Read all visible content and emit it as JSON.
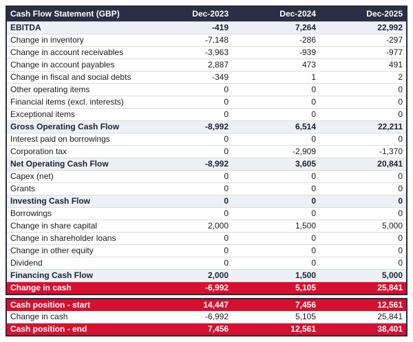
{
  "table": {
    "title": "Cash Flow Statement (GBP)",
    "columns": [
      "Dec-2023",
      "Dec-2024",
      "Dec-2025"
    ],
    "rows": [
      {
        "label": "EBITDA",
        "values": [
          "-419",
          "7,264",
          "22,992"
        ],
        "style": "subtotal"
      },
      {
        "label": "Change in inventory",
        "values": [
          "-7,148",
          "-286",
          "-297"
        ],
        "style": "normal"
      },
      {
        "label": "Change in account receivables",
        "values": [
          "-3,963",
          "-939",
          "-977"
        ],
        "style": "normal"
      },
      {
        "label": "Change in account payables",
        "values": [
          "2,887",
          "473",
          "491"
        ],
        "style": "normal"
      },
      {
        "label": "Change in fiscal and social debts",
        "values": [
          "-349",
          "1",
          "2"
        ],
        "style": "normal"
      },
      {
        "label": "Other operating items",
        "values": [
          "0",
          "0",
          "0"
        ],
        "style": "normal"
      },
      {
        "label": "Financial items (excl. interests)",
        "values": [
          "0",
          "0",
          "0"
        ],
        "style": "normal"
      },
      {
        "label": "Exceptional items",
        "values": [
          "0",
          "0",
          "0"
        ],
        "style": "normal"
      },
      {
        "label": "Gross Operating Cash Flow",
        "values": [
          "-8,992",
          "6,514",
          "22,211"
        ],
        "style": "subtotal"
      },
      {
        "label": "Interest paid on borrowings",
        "values": [
          "0",
          "0",
          "0"
        ],
        "style": "normal"
      },
      {
        "label": "Corporation tax",
        "values": [
          "0",
          "-2,909",
          "-1,370"
        ],
        "style": "normal"
      },
      {
        "label": "Net Operating Cash Flow",
        "values": [
          "-8,992",
          "3,605",
          "20,841"
        ],
        "style": "subtotal"
      },
      {
        "label": "Capex (net)",
        "values": [
          "0",
          "0",
          "0"
        ],
        "style": "normal"
      },
      {
        "label": "Grants",
        "values": [
          "0",
          "0",
          "0"
        ],
        "style": "normal"
      },
      {
        "label": "Investing Cash Flow",
        "values": [
          "0",
          "0",
          "0"
        ],
        "style": "subtotal"
      },
      {
        "label": "Borrowings",
        "values": [
          "0",
          "0",
          "0"
        ],
        "style": "normal"
      },
      {
        "label": "Change in share capital",
        "values": [
          "2,000",
          "1,500",
          "5,000"
        ],
        "style": "normal"
      },
      {
        "label": "Change in shareholder loans",
        "values": [
          "0",
          "0",
          "0"
        ],
        "style": "normal"
      },
      {
        "label": "Change in other equity",
        "values": [
          "0",
          "0",
          "0"
        ],
        "style": "normal"
      },
      {
        "label": "Dividend",
        "values": [
          "0",
          "0",
          "0"
        ],
        "style": "normal"
      },
      {
        "label": "Financing Cash Flow",
        "values": [
          "2,000",
          "1,500",
          "5,000"
        ],
        "style": "subtotal"
      },
      {
        "label": "Change in cash",
        "values": [
          "-6,992",
          "5,105",
          "25,841"
        ],
        "style": "highlight"
      }
    ],
    "summary_rows": [
      {
        "label": "Cash position - start",
        "values": [
          "14,447",
          "7,456",
          "12,561"
        ],
        "style": "highlight"
      },
      {
        "label": "Change in cash",
        "values": [
          "-6,992",
          "5,105",
          "25,841"
        ],
        "style": "normal"
      },
      {
        "label": "Cash position - end",
        "values": [
          "7,456",
          "12,561",
          "38,401"
        ],
        "style": "highlight"
      }
    ]
  },
  "colors": {
    "header_bg": "#2b2f45",
    "header_text": "#ffffff",
    "subtotal_bg": "#edf1f7",
    "highlight_bg": "#d8102f",
    "highlight_text": "#ffffff",
    "normal_text": "#1a1a1a",
    "row_border": "#dcdcdc",
    "table_border": "#262a3e"
  }
}
